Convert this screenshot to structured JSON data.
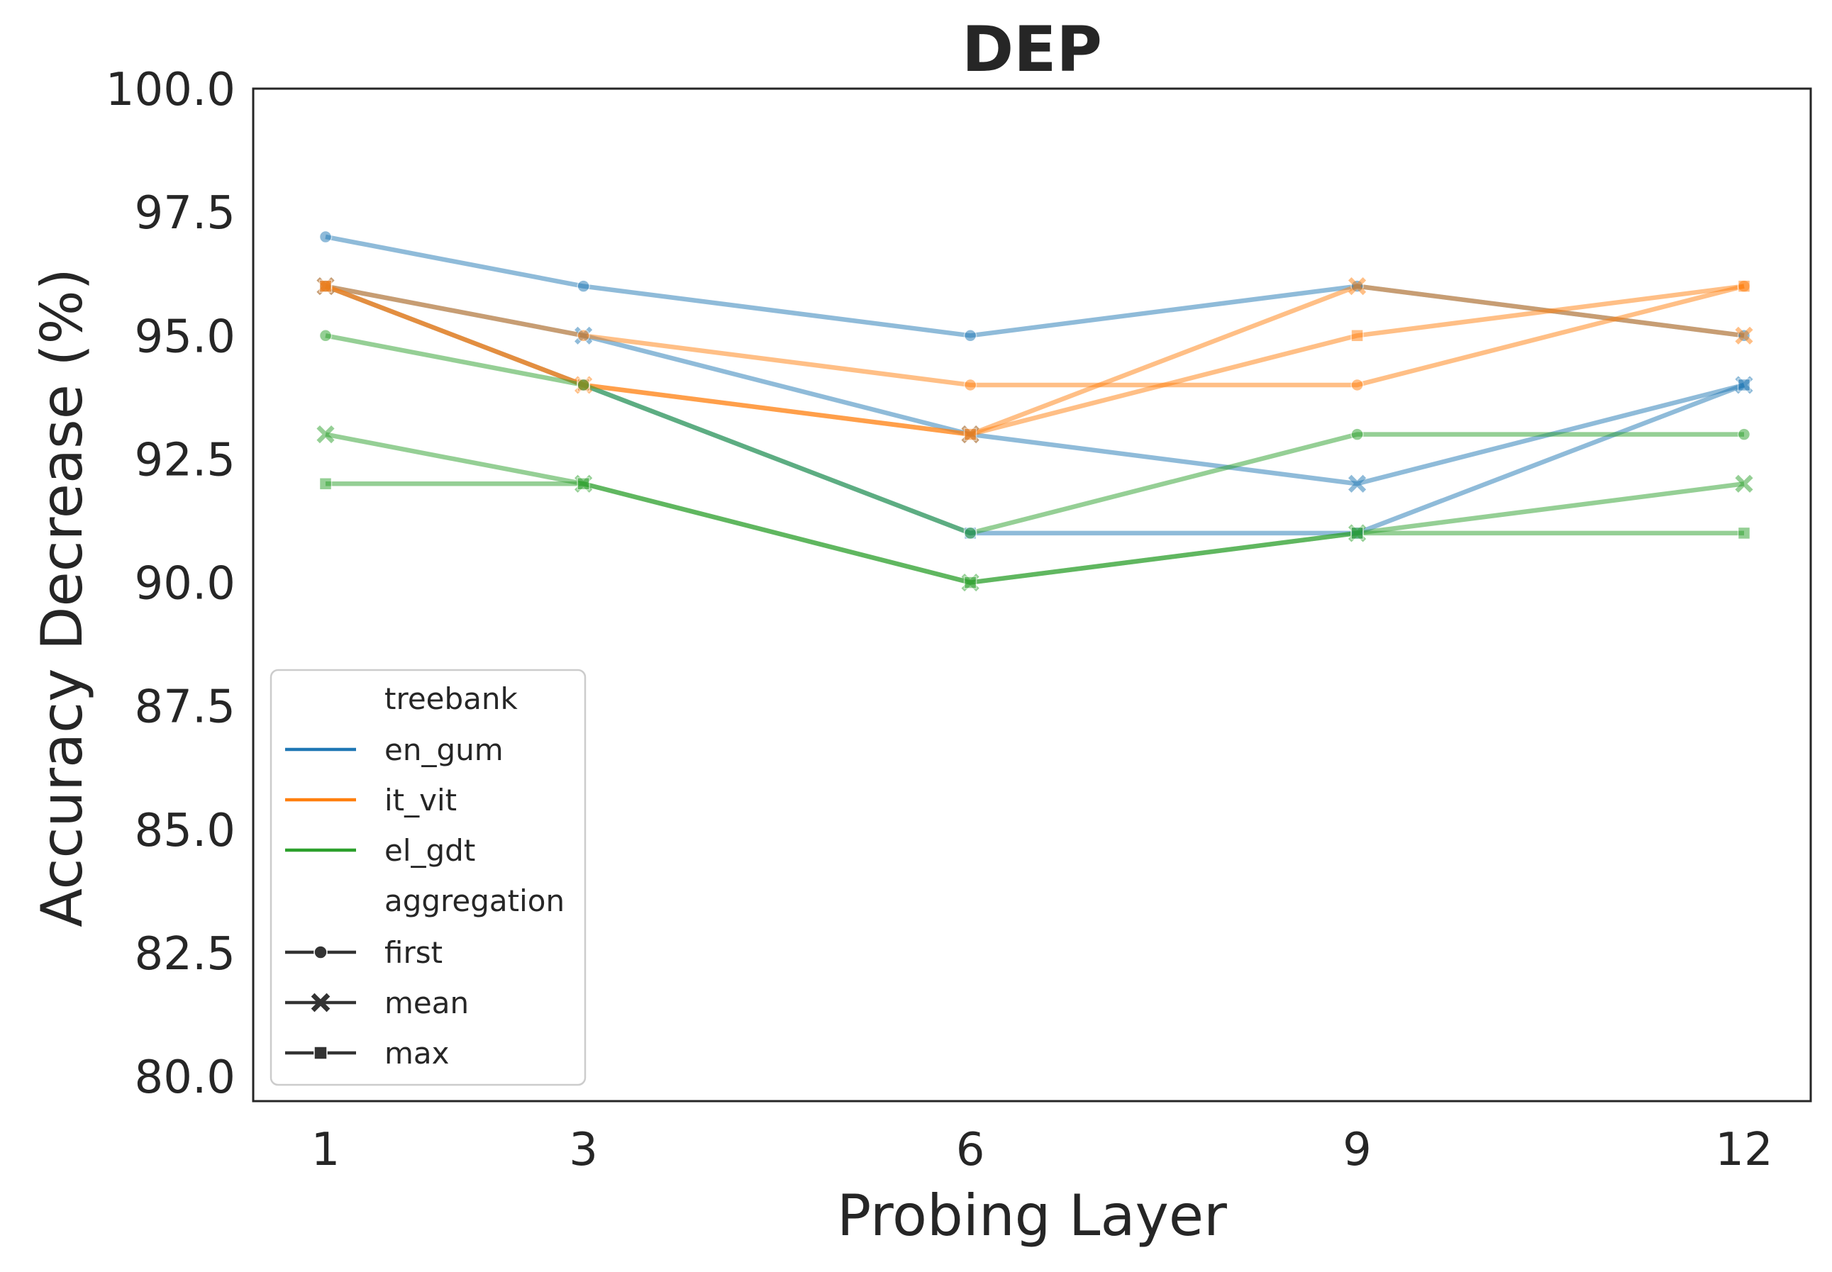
{
  "chart_data": {
    "type": "line",
    "title": "DEP",
    "xlabel": "Probing Layer",
    "ylabel": "Accuracy Decrease (%)",
    "x": [
      1,
      3,
      6,
      9,
      12
    ],
    "x_tick_labels": [
      "1",
      "3",
      "6",
      "9",
      "12"
    ],
    "ylim": [
      79.5,
      100
    ],
    "y_ticks": [
      80.0,
      82.5,
      85.0,
      87.5,
      90.0,
      92.5,
      95.0,
      97.5,
      100.0
    ],
    "y_tick_labels": [
      "80.0",
      "82.5",
      "85.0",
      "87.5",
      "90.0",
      "92.5",
      "95.0",
      "97.5",
      "100.0"
    ],
    "grid": false,
    "legend_position": "lower-left",
    "legend": {
      "hue_title": "treebank",
      "style_title": "aggregation",
      "hue_entries": [
        {
          "label": "en_gum",
          "color": "#1f77b4"
        },
        {
          "label": "it_vit",
          "color": "#ff7f0e"
        },
        {
          "label": "el_gdt",
          "color": "#2ca02c"
        }
      ],
      "style_entries": [
        {
          "label": "first",
          "marker": "circle"
        },
        {
          "label": "mean",
          "marker": "x"
        },
        {
          "label": "max",
          "marker": "square"
        }
      ]
    },
    "series": [
      {
        "treebank": "en_gum",
        "aggregation": "first",
        "color": "#1f77b4",
        "marker": "circle",
        "values": [
          97,
          96,
          95,
          96,
          95
        ]
      },
      {
        "treebank": "en_gum",
        "aggregation": "mean",
        "color": "#1f77b4",
        "marker": "x",
        "values": [
          96,
          95,
          93,
          92,
          94
        ]
      },
      {
        "treebank": "en_gum",
        "aggregation": "max",
        "color": "#1f77b4",
        "marker": "square",
        "values": [
          96,
          94,
          91,
          91,
          94
        ]
      },
      {
        "treebank": "it_vit",
        "aggregation": "first",
        "color": "#ff7f0e",
        "marker": "circle",
        "values": [
          96,
          95,
          94,
          94,
          96
        ]
      },
      {
        "treebank": "it_vit",
        "aggregation": "mean",
        "color": "#ff7f0e",
        "marker": "x",
        "values": [
          96,
          94,
          93,
          96,
          95
        ]
      },
      {
        "treebank": "it_vit",
        "aggregation": "max",
        "color": "#ff7f0e",
        "marker": "square",
        "values": [
          96,
          94,
          93,
          95,
          96
        ]
      },
      {
        "treebank": "el_gdt",
        "aggregation": "first",
        "color": "#2ca02c",
        "marker": "circle",
        "values": [
          95,
          94,
          91,
          93,
          93
        ]
      },
      {
        "treebank": "el_gdt",
        "aggregation": "mean",
        "color": "#2ca02c",
        "marker": "x",
        "values": [
          93,
          92,
          90,
          91,
          92
        ]
      },
      {
        "treebank": "el_gdt",
        "aggregation": "max",
        "color": "#2ca02c",
        "marker": "square",
        "values": [
          92,
          92,
          90,
          91,
          91
        ]
      }
    ]
  }
}
